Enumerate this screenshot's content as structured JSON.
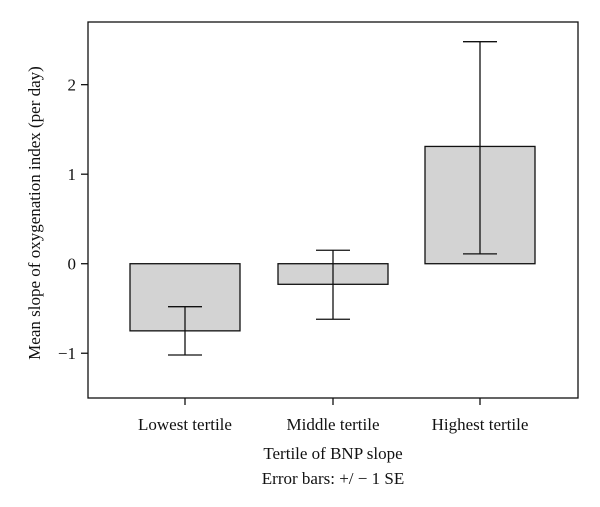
{
  "chart_data": {
    "type": "bar",
    "categories": [
      "Lowest tertile",
      "Middle tertile",
      "Highest tertile"
    ],
    "values": [
      -0.75,
      -0.23,
      1.31
    ],
    "error_bars": {
      "lower": [
        -1.02,
        -0.62,
        0.11
      ],
      "upper": [
        -0.48,
        0.15,
        2.48
      ]
    },
    "xlabel": "Tertile of BNP slope",
    "xlabel_note": "Error bars: +/ − 1 SE",
    "ylabel": "Mean slope of oxygenation index (per day)",
    "ylim": [
      -1.5,
      2.7
    ],
    "yticks": [
      -1,
      0,
      1,
      2
    ],
    "ytick_labels": [
      "−1",
      "0",
      "1",
      "2"
    ],
    "grid": false,
    "legend": "none",
    "bar_color": "#d3d3d3",
    "stroke_color": "#111111"
  }
}
